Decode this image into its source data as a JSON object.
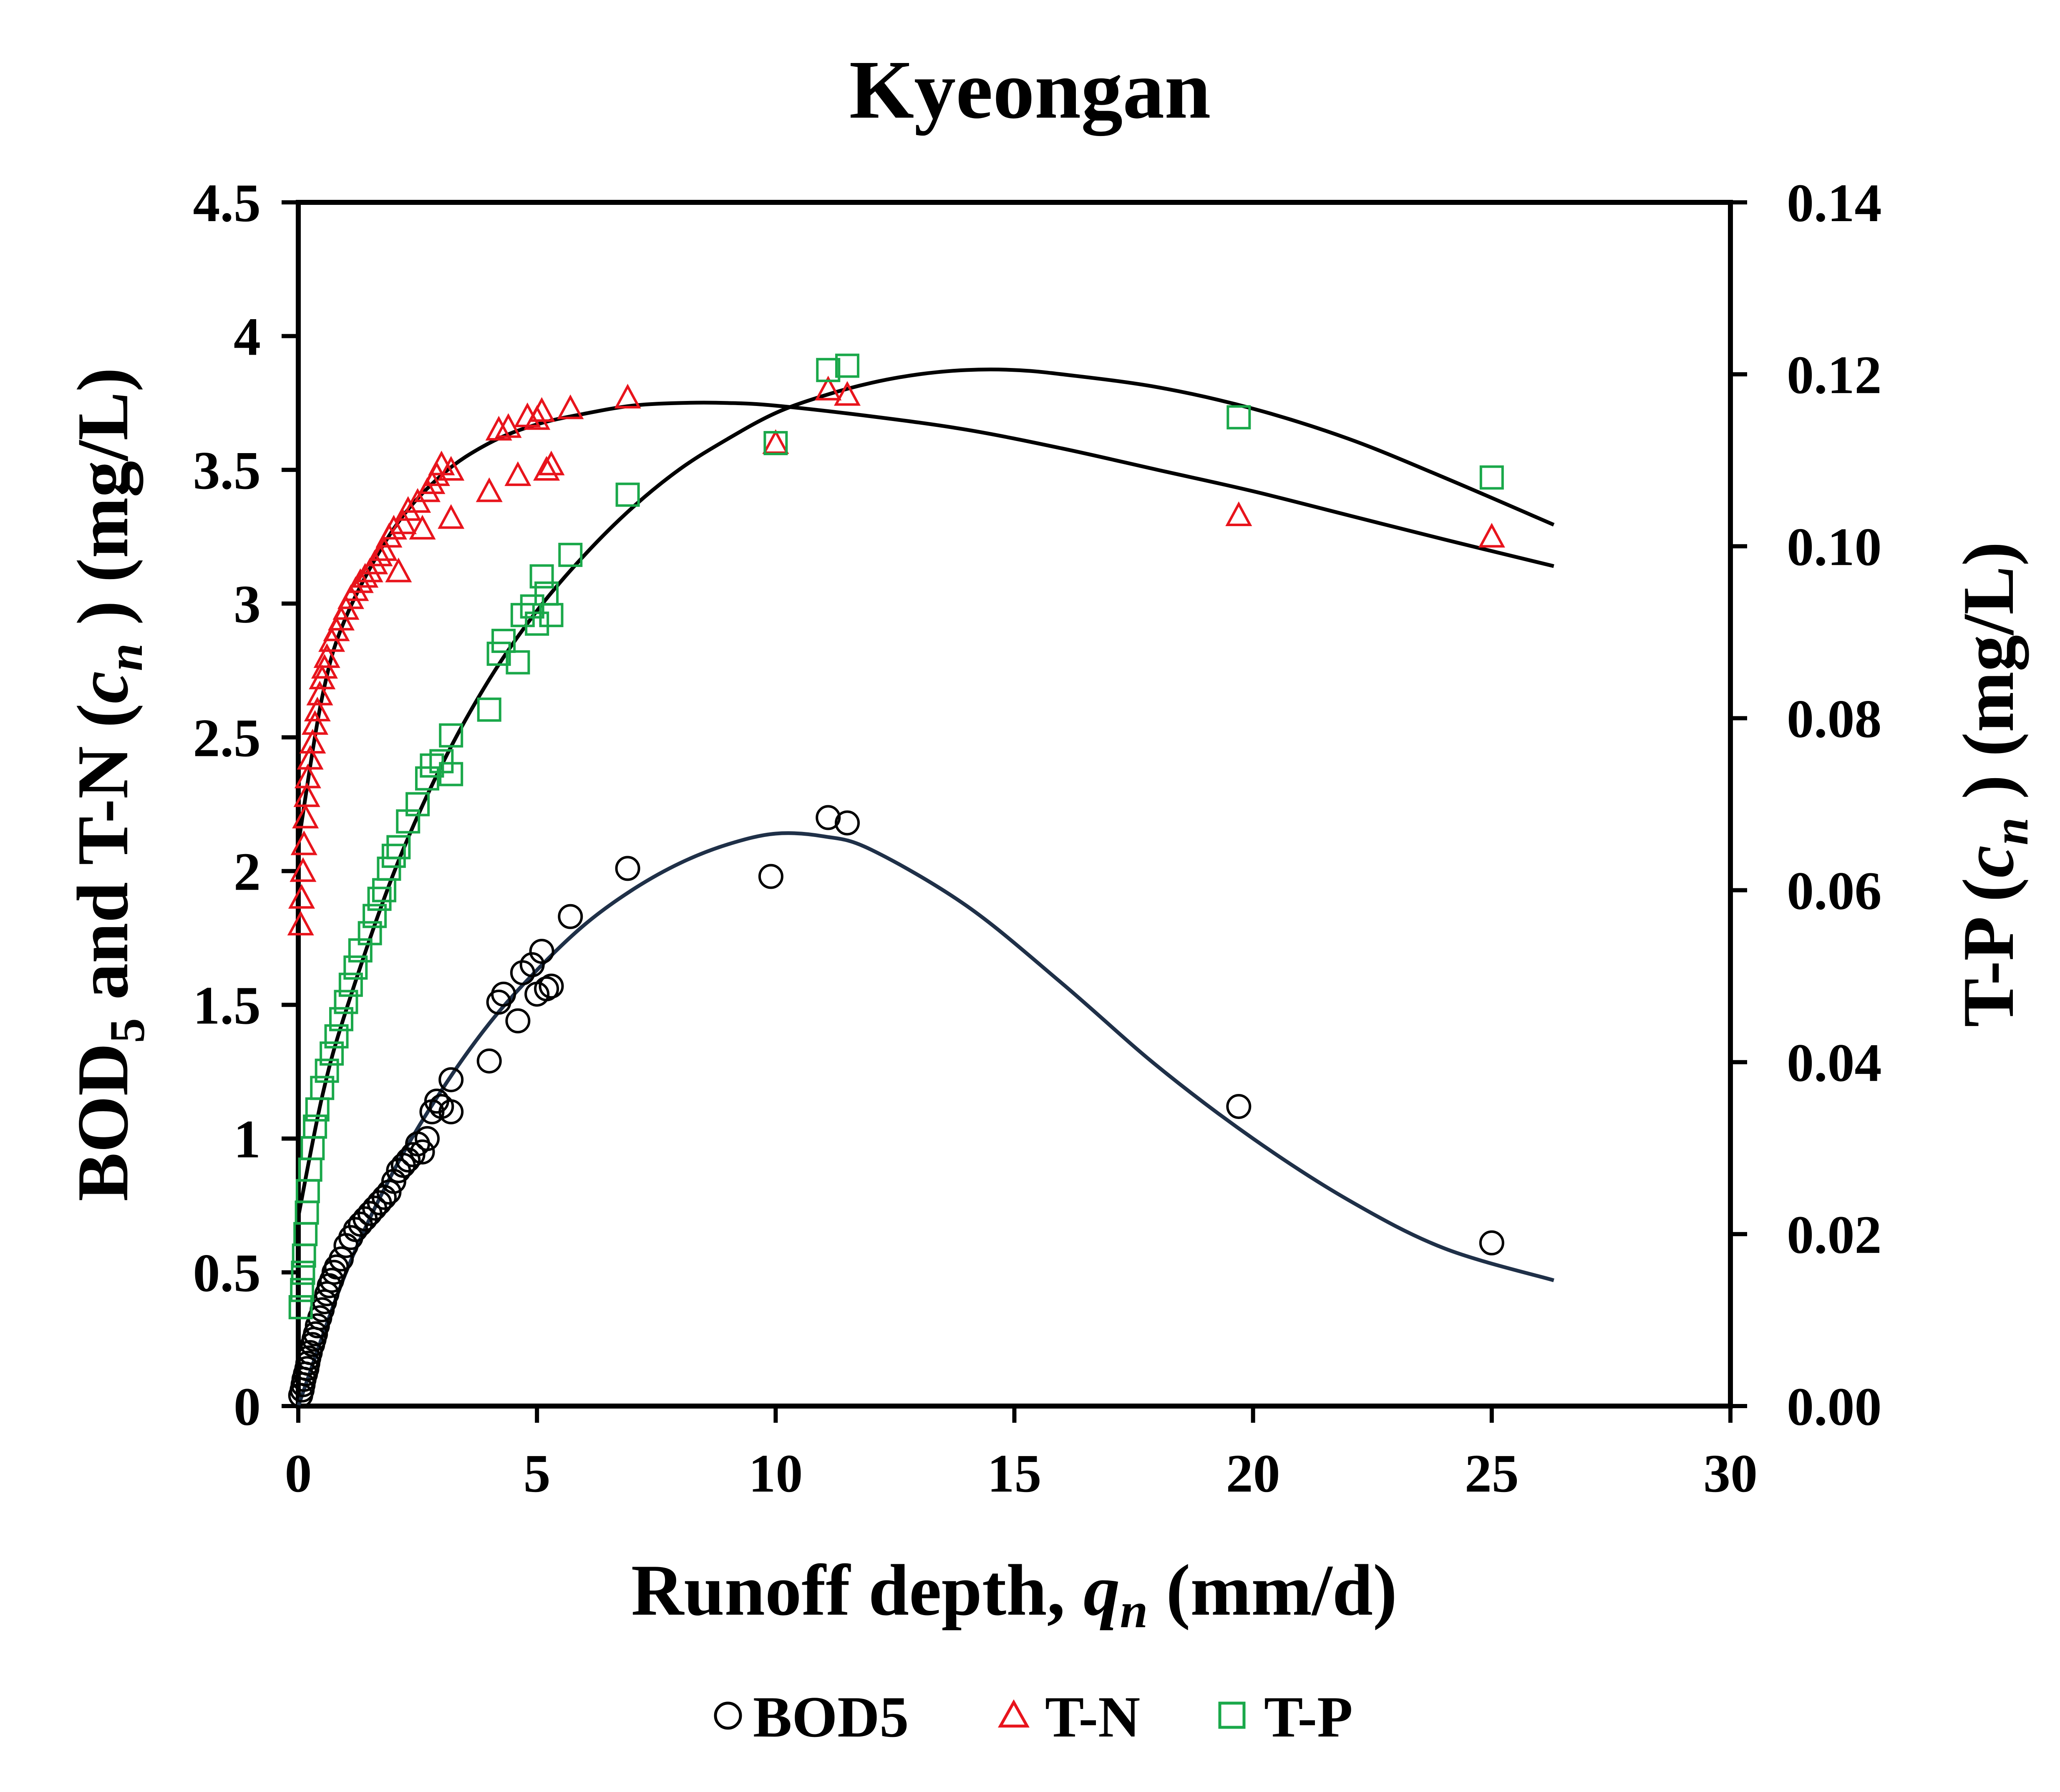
{
  "chart_data": {
    "type": "scatter",
    "title": "Kyeongan",
    "x_axis": {
      "label_main": "Runoff depth, ",
      "label_var": "q",
      "label_sub": "n",
      "label_unit": " (mm/d)",
      "range": [
        0,
        30
      ],
      "ticks": [
        0,
        5,
        10,
        15,
        20,
        25,
        30
      ],
      "tick_labels": [
        "0",
        "5",
        "10",
        "15",
        "20",
        "25",
        "30"
      ]
    },
    "y_left": {
      "label_a": "BOD",
      "label_a_sub": "5",
      "label_b": " and T-N (",
      "label_var": "c",
      "label_var_sub": "n",
      "label_unit": " ) (mg/L)",
      "range": [
        0,
        4.5
      ],
      "ticks": [
        0,
        0.5,
        1,
        1.5,
        2,
        2.5,
        3,
        3.5,
        4,
        4.5
      ],
      "tick_labels": [
        "0",
        "0.5",
        "1",
        "1.5",
        "2",
        "2.5",
        "3",
        "3.5",
        "4",
        "4.5"
      ]
    },
    "y_right": {
      "label_a": "T-P (",
      "label_var": "c",
      "label_var_sub": "n",
      "label_unit": " ) (mg/L)",
      "range": [
        0,
        0.14
      ],
      "ticks": [
        0,
        0.02,
        0.04,
        0.06,
        0.08,
        0.1,
        0.12,
        0.14
      ],
      "tick_labels": [
        "0.00",
        "0.02",
        "0.04",
        "0.06",
        "0.08",
        "0.10",
        "0.12",
        "0.14"
      ]
    },
    "legend": [
      {
        "name": "BOD5",
        "marker": "circle",
        "color": "#000000"
      },
      {
        "name": "T-N",
        "marker": "triangle",
        "color": "#e8141c"
      },
      {
        "name": "T-P",
        "marker": "square",
        "color": "#1aa84a"
      }
    ],
    "series": [
      {
        "name": "BOD5",
        "axis": "left",
        "marker": "circle",
        "color": "#000000",
        "points": [
          [
            0.05,
            0.04
          ],
          [
            0.08,
            0.06
          ],
          [
            0.1,
            0.08
          ],
          [
            0.12,
            0.1
          ],
          [
            0.15,
            0.12
          ],
          [
            0.18,
            0.14
          ],
          [
            0.2,
            0.16
          ],
          [
            0.22,
            0.18
          ],
          [
            0.25,
            0.2
          ],
          [
            0.3,
            0.23
          ],
          [
            0.33,
            0.25
          ],
          [
            0.36,
            0.27
          ],
          [
            0.4,
            0.3
          ],
          [
            0.45,
            0.33
          ],
          [
            0.5,
            0.36
          ],
          [
            0.55,
            0.39
          ],
          [
            0.6,
            0.42
          ],
          [
            0.65,
            0.45
          ],
          [
            0.7,
            0.47
          ],
          [
            0.75,
            0.5
          ],
          [
            0.8,
            0.52
          ],
          [
            0.9,
            0.55
          ],
          [
            1.0,
            0.6
          ],
          [
            1.1,
            0.63
          ],
          [
            1.2,
            0.66
          ],
          [
            1.3,
            0.68
          ],
          [
            1.4,
            0.7
          ],
          [
            1.5,
            0.72
          ],
          [
            1.6,
            0.74
          ],
          [
            1.7,
            0.76
          ],
          [
            1.8,
            0.78
          ],
          [
            1.9,
            0.8
          ],
          [
            2.0,
            0.84
          ],
          [
            2.1,
            0.88
          ],
          [
            2.2,
            0.9
          ],
          [
            2.3,
            0.92
          ],
          [
            2.4,
            0.94
          ],
          [
            2.5,
            0.98
          ],
          [
            2.6,
            0.95
          ],
          [
            2.7,
            1.0
          ],
          [
            2.8,
            1.1
          ],
          [
            2.9,
            1.14
          ],
          [
            3.0,
            1.12
          ],
          [
            3.2,
            1.22
          ],
          [
            3.2,
            1.1
          ],
          [
            4.0,
            1.29
          ],
          [
            4.2,
            1.51
          ],
          [
            4.3,
            1.54
          ],
          [
            4.6,
            1.44
          ],
          [
            4.7,
            1.62
          ],
          [
            4.9,
            1.65
          ],
          [
            5.0,
            1.54
          ],
          [
            5.1,
            1.7
          ],
          [
            5.2,
            1.56
          ],
          [
            5.3,
            1.57
          ],
          [
            5.7,
            1.83
          ],
          [
            6.9,
            2.01
          ],
          [
            9.9,
            1.98
          ],
          [
            11.1,
            2.2
          ],
          [
            11.5,
            2.18
          ],
          [
            19.7,
            1.12
          ],
          [
            25.0,
            0.61
          ]
        ]
      },
      {
        "name": "T-N",
        "axis": "left",
        "marker": "triangle",
        "color": "#e8141c",
        "points": [
          [
            0.05,
            1.8
          ],
          [
            0.07,
            1.9
          ],
          [
            0.1,
            2.0
          ],
          [
            0.12,
            2.1
          ],
          [
            0.15,
            2.2
          ],
          [
            0.18,
            2.28
          ],
          [
            0.2,
            2.35
          ],
          [
            0.25,
            2.42
          ],
          [
            0.3,
            2.48
          ],
          [
            0.35,
            2.55
          ],
          [
            0.4,
            2.6
          ],
          [
            0.45,
            2.66
          ],
          [
            0.5,
            2.72
          ],
          [
            0.55,
            2.76
          ],
          [
            0.6,
            2.8
          ],
          [
            0.7,
            2.86
          ],
          [
            0.8,
            2.9
          ],
          [
            0.9,
            2.94
          ],
          [
            1.0,
            2.98
          ],
          [
            1.1,
            3.02
          ],
          [
            1.2,
            3.05
          ],
          [
            1.3,
            3.08
          ],
          [
            1.4,
            3.1
          ],
          [
            1.5,
            3.12
          ],
          [
            1.6,
            3.15
          ],
          [
            1.7,
            3.18
          ],
          [
            1.8,
            3.2
          ],
          [
            1.9,
            3.25
          ],
          [
            2.0,
            3.28
          ],
          [
            2.1,
            3.12
          ],
          [
            2.2,
            3.3
          ],
          [
            2.3,
            3.35
          ],
          [
            2.5,
            3.38
          ],
          [
            2.6,
            3.28
          ],
          [
            2.7,
            3.42
          ],
          [
            2.8,
            3.45
          ],
          [
            2.9,
            3.48
          ],
          [
            3.0,
            3.52
          ],
          [
            3.2,
            3.5
          ],
          [
            3.2,
            3.32
          ],
          [
            4.0,
            3.42
          ],
          [
            4.2,
            3.65
          ],
          [
            4.4,
            3.66
          ],
          [
            4.6,
            3.48
          ],
          [
            4.8,
            3.7
          ],
          [
            5.0,
            3.69
          ],
          [
            5.1,
            3.72
          ],
          [
            5.2,
            3.5
          ],
          [
            5.3,
            3.52
          ],
          [
            5.7,
            3.73
          ],
          [
            6.9,
            3.77
          ],
          [
            10.0,
            3.6
          ],
          [
            11.1,
            3.8
          ],
          [
            11.5,
            3.78
          ],
          [
            19.7,
            3.33
          ],
          [
            25.0,
            3.25
          ]
        ]
      },
      {
        "name": "T-P",
        "axis": "right",
        "marker": "square",
        "color": "#1aa84a",
        "points": [
          [
            0.05,
            0.0115
          ],
          [
            0.08,
            0.0135
          ],
          [
            0.1,
            0.0155
          ],
          [
            0.12,
            0.0175
          ],
          [
            0.15,
            0.02
          ],
          [
            0.18,
            0.0225
          ],
          [
            0.2,
            0.025
          ],
          [
            0.25,
            0.0275
          ],
          [
            0.3,
            0.03
          ],
          [
            0.35,
            0.0325
          ],
          [
            0.4,
            0.0345
          ],
          [
            0.5,
            0.037
          ],
          [
            0.6,
            0.039
          ],
          [
            0.7,
            0.041
          ],
          [
            0.8,
            0.043
          ],
          [
            0.9,
            0.045
          ],
          [
            1.0,
            0.047
          ],
          [
            1.1,
            0.049
          ],
          [
            1.2,
            0.051
          ],
          [
            1.3,
            0.053
          ],
          [
            1.5,
            0.055
          ],
          [
            1.6,
            0.057
          ],
          [
            1.7,
            0.059
          ],
          [
            1.8,
            0.06
          ],
          [
            1.9,
            0.0625
          ],
          [
            2.0,
            0.064
          ],
          [
            2.1,
            0.065
          ],
          [
            2.3,
            0.068
          ],
          [
            2.5,
            0.07
          ],
          [
            2.7,
            0.073
          ],
          [
            2.8,
            0.0745
          ],
          [
            3.0,
            0.075
          ],
          [
            3.2,
            0.078
          ],
          [
            3.2,
            0.0735
          ],
          [
            4.0,
            0.081
          ],
          [
            4.2,
            0.0875
          ],
          [
            4.3,
            0.089
          ],
          [
            4.6,
            0.0865
          ],
          [
            4.7,
            0.092
          ],
          [
            4.9,
            0.093
          ],
          [
            5.0,
            0.091
          ],
          [
            5.1,
            0.0965
          ],
          [
            5.2,
            0.0945
          ],
          [
            5.3,
            0.092
          ],
          [
            5.7,
            0.099
          ],
          [
            6.9,
            0.106
          ],
          [
            10.0,
            0.112
          ],
          [
            11.1,
            0.1205
          ],
          [
            11.5,
            0.121
          ],
          [
            19.7,
            0.115
          ],
          [
            25.0,
            0.108
          ]
        ]
      }
    ],
    "trend_lines": [
      {
        "name": "BOD5 fit",
        "axis": "left",
        "color": "#1f3048",
        "x": [
          0,
          1,
          2,
          3,
          4,
          5,
          6,
          7,
          8,
          9,
          10,
          11,
          12,
          14,
          16,
          18,
          20,
          22,
          24,
          26.3
        ],
        "y": [
          0,
          0.5,
          0.88,
          1.18,
          1.43,
          1.63,
          1.8,
          1.93,
          2.03,
          2.1,
          2.14,
          2.13,
          2.08,
          1.87,
          1.58,
          1.27,
          1.0,
          0.77,
          0.59,
          0.47
        ]
      },
      {
        "name": "T-N fit",
        "axis": "left",
        "color": "#000000",
        "x": [
          0,
          0.5,
          1,
          2,
          3,
          4,
          5,
          6,
          7,
          8,
          9,
          10,
          12,
          14,
          16,
          18,
          20,
          22,
          24,
          26.3
        ],
        "y": [
          2.1,
          2.65,
          2.95,
          3.28,
          3.48,
          3.6,
          3.67,
          3.71,
          3.74,
          3.75,
          3.75,
          3.74,
          3.7,
          3.65,
          3.58,
          3.5,
          3.42,
          3.33,
          3.24,
          3.14
        ]
      },
      {
        "name": "T-P fit",
        "axis": "right",
        "color": "#000000",
        "x": [
          0,
          0.5,
          1,
          2,
          3,
          4,
          5,
          6,
          7,
          8,
          9,
          10,
          11,
          12,
          13,
          14,
          15,
          16,
          18,
          20,
          22,
          24,
          26.3
        ],
        "y": [
          0.022,
          0.036,
          0.046,
          0.062,
          0.0745,
          0.0845,
          0.0925,
          0.099,
          0.1045,
          0.109,
          0.1125,
          0.1155,
          0.1175,
          0.119,
          0.12,
          0.1205,
          0.1205,
          0.12,
          0.1185,
          0.116,
          0.1125,
          0.108,
          0.1025
        ]
      }
    ]
  }
}
